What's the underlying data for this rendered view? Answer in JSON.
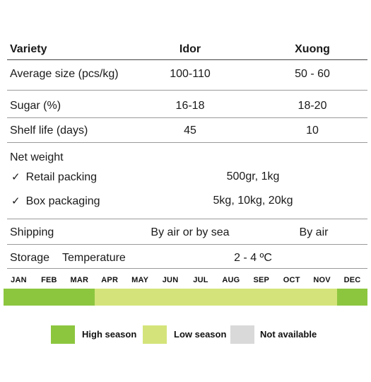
{
  "table": {
    "header": {
      "label": "Variety",
      "col1": "Idor",
      "col2": "Xuong"
    },
    "rows": [
      {
        "label": "Average size (pcs/kg)",
        "col1": "100-110",
        "col2": "50 - 60"
      },
      {
        "label": "Sugar (%)",
        "col1": "16-18",
        "col2": "18-20"
      },
      {
        "label": "Shelf life (days)",
        "col1": "45",
        "col2": "10"
      }
    ],
    "net_weight": {
      "label": "Net weight",
      "items": [
        {
          "check": "✓",
          "label": "Retail packing",
          "value": "500gr, 1kg"
        },
        {
          "check": "✓",
          "label": "Box packaging",
          "value": "5kg, 10kg, 20kg"
        }
      ]
    },
    "shipping": {
      "label": "Shipping",
      "col1": "By air or by sea",
      "col2": "By air"
    },
    "storage": {
      "label": "Storage",
      "sub": "Temperature",
      "value": "2 - 4 ºC"
    }
  },
  "calendar": {
    "months": [
      "JAN",
      "FEB",
      "MAR",
      "APR",
      "MAY",
      "JUN",
      "JUL",
      "AUG",
      "SEP",
      "OCT",
      "NOV",
      "DEC"
    ],
    "season_by_month": [
      "high",
      "high",
      "high",
      "low",
      "low",
      "low",
      "low",
      "low",
      "low",
      "low",
      "low",
      "high"
    ]
  },
  "legend": [
    {
      "key": "high",
      "label": "High season",
      "color": "#8cc63f"
    },
    {
      "key": "low",
      "label": "Low season",
      "color": "#d4e47a"
    },
    {
      "key": "na",
      "label": "Not available",
      "color": "#d9d9d9"
    }
  ]
}
